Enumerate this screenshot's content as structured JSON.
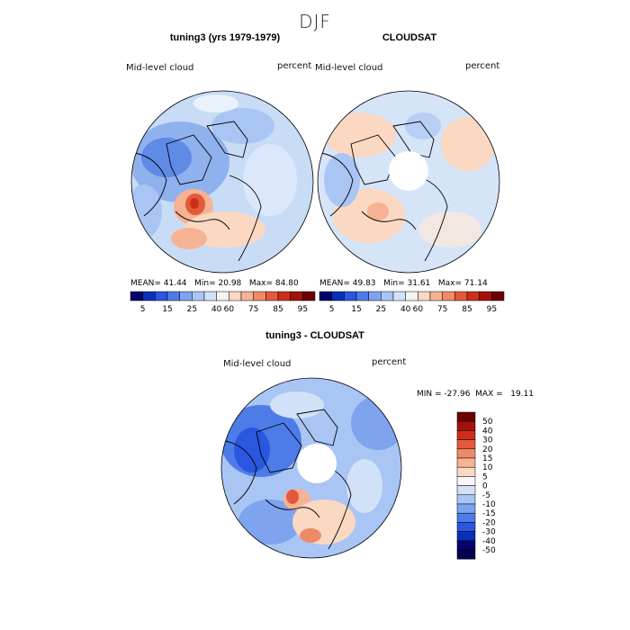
{
  "season": "DJF",
  "panels": [
    {
      "title": "tuning3 (yrs 1979-1979)",
      "variable": "Mid-level cloud",
      "units": "percent",
      "stats": {
        "mean_label": "MEAN=",
        "mean": "41.44",
        "min_label": "Min=",
        "min": "20.98",
        "max_label": "Max=",
        "max": "84.80"
      }
    },
    {
      "title": "CLOUDSAT",
      "variable": "Mid-level cloud",
      "units": "percent",
      "stats": {
        "mean_label": "MEAN=",
        "mean": "49.83",
        "min_label": "Min=",
        "min": "31.61",
        "max_label": "Max=",
        "max": "71.14"
      }
    }
  ],
  "diff": {
    "title": "tuning3 - CLOUDSAT",
    "variable": "Mid-level cloud",
    "units": "percent",
    "minmax": "MIN = -27.96  MAX =   19.11"
  },
  "chart_data": [
    {
      "type": "heatmap",
      "title": "tuning3 (yrs 1979-1979)",
      "projection": "north polar stereographic",
      "variable": "Mid-level cloud",
      "units": "percent",
      "mean": 41.44,
      "min": 20.98,
      "max": 84.8,
      "colorbar_ticks": [
        "5",
        "15",
        "25",
        "40",
        "60",
        "75",
        "85",
        "95"
      ],
      "colorbar_colors": [
        "#03036b",
        "#0a2fb8",
        "#2a56e0",
        "#4d7ce8",
        "#7ea3ef",
        "#a9c5f4",
        "#d1e1f8",
        "#f3f3f3",
        "#fbd8c2",
        "#f6b394",
        "#ef8a66",
        "#e5593b",
        "#cc2e1a",
        "#a3120a",
        "#6b0000"
      ]
    },
    {
      "type": "heatmap",
      "title": "CLOUDSAT",
      "projection": "north polar stereographic",
      "variable": "Mid-level cloud",
      "units": "percent",
      "mean": 49.83,
      "min": 31.61,
      "max": 71.14,
      "colorbar_ticks": [
        "5",
        "15",
        "25",
        "40",
        "60",
        "75",
        "85",
        "95"
      ],
      "colorbar_colors": [
        "#03036b",
        "#0a2fb8",
        "#2a56e0",
        "#4d7ce8",
        "#7ea3ef",
        "#a9c5f4",
        "#d1e1f8",
        "#f3f3f3",
        "#fbd8c2",
        "#f6b394",
        "#ef8a66",
        "#e5593b",
        "#cc2e1a",
        "#a3120a",
        "#6b0000"
      ]
    },
    {
      "type": "heatmap",
      "title": "tuning3 - CLOUDSAT",
      "projection": "north polar stereographic",
      "variable": "Mid-level cloud",
      "units": "percent",
      "min": -27.96,
      "max": 19.11,
      "colorbar_ticks": [
        "50",
        "40",
        "30",
        "20",
        "15",
        "10",
        "5",
        "0",
        "-5",
        "-10",
        "-15",
        "-20",
        "-30",
        "-40",
        "-50"
      ],
      "colorbar_colors": [
        "#6b0000",
        "#a3120a",
        "#cc2e1a",
        "#e5593b",
        "#ef8a66",
        "#f6b394",
        "#fbd8c2",
        "#f7f7f7",
        "#d1e1f8",
        "#a9c5f4",
        "#7ea3ef",
        "#4d7ce8",
        "#2a56e0",
        "#0a2fb8",
        "#03036b",
        "#020250"
      ]
    }
  ]
}
